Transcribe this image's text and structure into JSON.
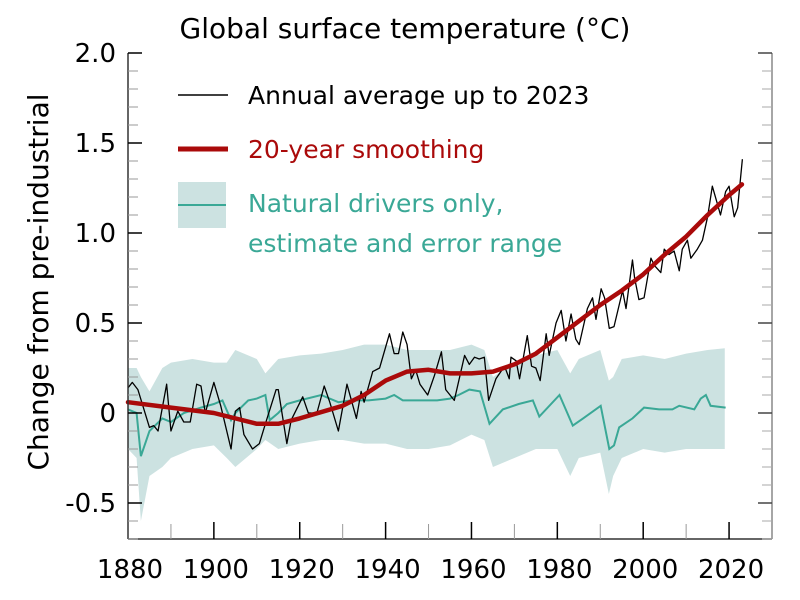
{
  "chart_data": {
    "type": "line",
    "title": "Global surface temperature (°C)",
    "xlabel": "",
    "ylabel": "Change from pre-industrial",
    "xlim": [
      1880,
      2030
    ],
    "ylim": [
      -0.7,
      2.0
    ],
    "x_ticks": [
      1880,
      1900,
      1920,
      1940,
      1960,
      1980,
      2000,
      2020
    ],
    "x_tick_labels": [
      "1880",
      "1900",
      "1920",
      "1940",
      "1960",
      "1980",
      "2000",
      "2020"
    ],
    "y_ticks": [
      -0.5,
      0,
      0.5,
      1.0,
      1.5,
      2.0
    ],
    "y_tick_labels": [
      "-0.5",
      "0",
      "0.5",
      "1.0",
      "1.5",
      "2.0"
    ],
    "grid": false,
    "legend_position": "top-left",
    "colors": {
      "annual": "#000000",
      "smooth": "#aa0a0a",
      "natural": "#3aa896",
      "band": "#cce2e1"
    },
    "series": [
      {
        "name": "Annual average up to 2023",
        "x": [
          1880,
          1881,
          1882.3,
          1885,
          1886,
          1887,
          1889,
          1890,
          1891.6,
          1893,
          1894.5,
          1896,
          1897,
          1898,
          1900,
          1901.6,
          1904,
          1905,
          1906,
          1907,
          1909,
          1910.6,
          1912,
          1914.5,
          1915,
          1917,
          1918,
          1920.7,
          1922,
          1924,
          1925.7,
          1927,
          1929,
          1931,
          1933.2,
          1934.3,
          1935,
          1937,
          1938.6,
          1940.9,
          1942,
          1943,
          1944,
          1945,
          1946,
          1947,
          1948,
          1949.8,
          1951.4,
          1953,
          1954,
          1956,
          1958.4,
          1959.5,
          1960.7,
          1961.8,
          1963,
          1964,
          1965.7,
          1967.7,
          1968.8,
          1969.2,
          1970.4,
          1971.2,
          1973,
          1974,
          1975,
          1976,
          1977.4,
          1978.1,
          1979.7,
          1980.9,
          1982,
          1983.2,
          1984.3,
          1985.1,
          1987,
          1988.2,
          1989,
          1990.2,
          1991,
          1992.1,
          1993.2,
          1995.2,
          1996,
          1997.5,
          1998,
          1999,
          2000.2,
          2001.8,
          2002.6,
          2004.1,
          2004.9,
          2006,
          2007.2,
          2008.4,
          2009.1,
          2010.3,
          2011.1,
          2012.6,
          2013.8,
          2015,
          2016.1,
          2017.3,
          2018,
          2019.2,
          2020,
          2021.2,
          2022,
          2023.1
        ],
        "y": [
          0.14,
          0.17,
          0.13,
          -0.08,
          -0.07,
          -0.1,
          0.16,
          -0.1,
          0.01,
          -0.05,
          -0.05,
          0.16,
          0.15,
          0.0,
          0.17,
          0.04,
          -0.2,
          0.01,
          0.03,
          -0.12,
          -0.2,
          -0.17,
          -0.06,
          0.13,
          0.13,
          -0.17,
          -0.04,
          0.09,
          0.0,
          0.0,
          0.15,
          0.06,
          -0.1,
          0.16,
          -0.03,
          0.12,
          0.06,
          0.23,
          0.25,
          0.44,
          0.33,
          0.33,
          0.45,
          0.38,
          0.19,
          0.24,
          0.16,
          0.1,
          0.21,
          0.34,
          0.13,
          0.07,
          0.32,
          0.27,
          0.31,
          0.3,
          0.31,
          0.07,
          0.19,
          0.26,
          0.19,
          0.31,
          0.29,
          0.19,
          0.43,
          0.26,
          0.25,
          0.18,
          0.44,
          0.32,
          0.5,
          0.57,
          0.4,
          0.55,
          0.41,
          0.38,
          0.58,
          0.64,
          0.52,
          0.69,
          0.64,
          0.47,
          0.48,
          0.68,
          0.58,
          0.85,
          0.75,
          0.63,
          0.64,
          0.86,
          0.82,
          0.78,
          0.91,
          0.88,
          0.9,
          0.79,
          0.91,
          0.96,
          0.86,
          0.91,
          0.96,
          1.09,
          1.26,
          1.16,
          1.1,
          1.23,
          1.26,
          1.09,
          1.14,
          1.41
        ]
      },
      {
        "name": "20-year smoothing",
        "x": [
          1880,
          1890,
          1900,
          1910,
          1915,
          1920,
          1930,
          1935,
          1940,
          1945,
          1950,
          1955,
          1960,
          1965,
          1970,
          1975,
          1980,
          1985,
          1990,
          1995,
          2000,
          2005,
          2010,
          2015,
          2020,
          2023
        ],
        "y": [
          0.06,
          0.03,
          0.0,
          -0.06,
          -0.06,
          -0.03,
          0.04,
          0.1,
          0.18,
          0.23,
          0.24,
          0.22,
          0.22,
          0.23,
          0.27,
          0.33,
          0.42,
          0.51,
          0.6,
          0.68,
          0.77,
          0.88,
          0.98,
          1.1,
          1.21,
          1.27
        ]
      },
      {
        "name": "Natural drivers only, estimate and error range",
        "x": [
          1880,
          1882,
          1883,
          1885,
          1888,
          1890,
          1893,
          1897,
          1900,
          1902,
          1904,
          1905,
          1908,
          1910,
          1912,
          1913,
          1915,
          1917,
          1920,
          1925,
          1929,
          1932,
          1936,
          1940,
          1942,
          1944,
          1948,
          1952,
          1955,
          1957,
          1959.5,
          1962,
          1964.2,
          1967.3,
          1971,
          1974.3,
          1975.8,
          1980.5,
          1983.6,
          1986,
          1990.1,
          1992.1,
          1993.2,
          1994.4,
          1997.5,
          2000.2,
          2003.7,
          2006.8,
          2008.4,
          2011.9,
          2013.4,
          2014.6,
          2015.7,
          2019.2
        ],
        "y": [
          0.02,
          0.0,
          -0.24,
          -0.1,
          -0.03,
          -0.05,
          0.0,
          0.03,
          0.05,
          0.07,
          -0.04,
          0.0,
          0.07,
          0.08,
          0.1,
          -0.04,
          0.0,
          0.05,
          0.07,
          0.1,
          0.06,
          0.07,
          0.07,
          0.08,
          0.1,
          0.07,
          0.07,
          0.07,
          0.08,
          0.1,
          0.13,
          0.12,
          -0.06,
          0.02,
          0.05,
          0.07,
          -0.02,
          0.1,
          -0.07,
          -0.03,
          0.04,
          -0.2,
          -0.18,
          -0.08,
          -0.03,
          0.03,
          0.02,
          0.02,
          0.04,
          0.02,
          0.08,
          0.1,
          0.04,
          0.03
        ],
        "band_x": [
          1880,
          1882,
          1883,
          1885,
          1888,
          1890,
          1895,
          1900,
          1903,
          1905,
          1910,
          1912,
          1915,
          1920,
          1925,
          1930,
          1935,
          1940,
          1945,
          1950,
          1955,
          1960,
          1963,
          1965,
          1970,
          1975,
          1980,
          1983,
          1985,
          1990,
          1992,
          1993,
          1995,
          2000,
          2005,
          2010,
          2015,
          2019
        ],
        "band_upper": [
          0.25,
          0.25,
          0.2,
          0.12,
          0.25,
          0.28,
          0.3,
          0.28,
          0.28,
          0.35,
          0.3,
          0.22,
          0.3,
          0.32,
          0.33,
          0.35,
          0.38,
          0.38,
          0.35,
          0.35,
          0.35,
          0.38,
          0.35,
          0.2,
          0.28,
          0.32,
          0.35,
          0.22,
          0.3,
          0.35,
          0.18,
          0.2,
          0.3,
          0.32,
          0.3,
          0.33,
          0.35,
          0.36
        ],
        "band_lower": [
          -0.2,
          -0.25,
          -0.6,
          -0.35,
          -0.3,
          -0.25,
          -0.2,
          -0.18,
          -0.25,
          -0.3,
          -0.2,
          -0.15,
          -0.2,
          -0.17,
          -0.15,
          -0.15,
          -0.17,
          -0.17,
          -0.2,
          -0.2,
          -0.18,
          -0.12,
          -0.15,
          -0.3,
          -0.25,
          -0.2,
          -0.2,
          -0.35,
          -0.25,
          -0.22,
          -0.45,
          -0.35,
          -0.25,
          -0.2,
          -0.22,
          -0.2,
          -0.2,
          -0.2
        ]
      }
    ],
    "legend": [
      "Annual average up to 2023",
      "20-year smoothing",
      "Natural drivers only,",
      "estimate and error range"
    ]
  }
}
